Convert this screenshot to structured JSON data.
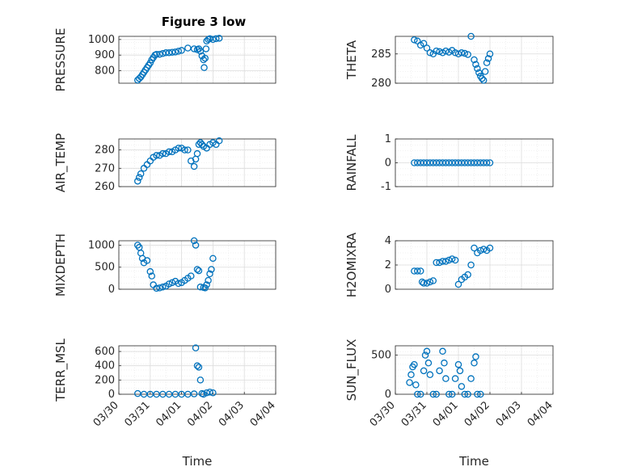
{
  "figure_title": "Figure 3 low",
  "chart_data": [
    {
      "id": "pressure",
      "type": "scatter",
      "ylabel": "PRESSURE",
      "ylim": [
        720,
        1020
      ],
      "yticks": [
        800,
        900,
        1000
      ],
      "xticks": [],
      "xlabel": "",
      "x": [
        0.6,
        0.65,
        0.7,
        0.75,
        0.8,
        0.85,
        0.9,
        0.95,
        1.0,
        1.05,
        1.1,
        1.15,
        1.2,
        1.3,
        1.4,
        1.5,
        1.6,
        1.7,
        1.8,
        1.9,
        2.0,
        2.2,
        2.4,
        2.5,
        2.55,
        2.6,
        2.65,
        2.7,
        2.72,
        2.75,
        2.78,
        2.8,
        2.85,
        2.9,
        3.0,
        3.1,
        3.2
      ],
      "y": [
        740,
        750,
        760,
        775,
        790,
        805,
        820,
        835,
        850,
        870,
        885,
        900,
        905,
        905,
        910,
        915,
        915,
        918,
        920,
        925,
        930,
        945,
        940,
        935,
        940,
        925,
        895,
        870,
        820,
        880,
        940,
        990,
        1000,
        1005,
        1000,
        1005,
        1008
      ]
    },
    {
      "id": "theta",
      "type": "scatter",
      "ylabel": "THETA",
      "ylim": [
        280,
        288
      ],
      "yticks": [
        280,
        285
      ],
      "xticks": [],
      "xlabel": "",
      "x": [
        0.6,
        0.7,
        0.8,
        0.9,
        1.0,
        1.1,
        1.2,
        1.3,
        1.4,
        1.5,
        1.6,
        1.7,
        1.8,
        1.9,
        2.0,
        2.1,
        2.2,
        2.3,
        2.4,
        2.5,
        2.55,
        2.6,
        2.65,
        2.7,
        2.75,
        2.8,
        2.85,
        2.9,
        2.95,
        3.0
      ],
      "y": [
        287.4,
        287.2,
        286.5,
        286.8,
        286.0,
        285.2,
        285.0,
        285.5,
        285.4,
        285.2,
        285.5,
        285.3,
        285.6,
        285.2,
        285.0,
        285.2,
        285.1,
        284.9,
        288.0,
        284.0,
        283.2,
        282.5,
        281.8,
        281.2,
        280.8,
        280.5,
        282.0,
        283.5,
        284.2,
        285.0
      ]
    },
    {
      "id": "air_temp",
      "type": "scatter",
      "ylabel": "AIR_TEMP",
      "ylim": [
        260,
        286
      ],
      "yticks": [
        260,
        270,
        280
      ],
      "xticks": [],
      "xlabel": "",
      "x": [
        0.6,
        0.65,
        0.7,
        0.8,
        0.9,
        1.0,
        1.1,
        1.2,
        1.3,
        1.4,
        1.5,
        1.6,
        1.7,
        1.8,
        1.9,
        2.0,
        2.1,
        2.2,
        2.3,
        2.4,
        2.45,
        2.5,
        2.55,
        2.6,
        2.65,
        2.7,
        2.8,
        2.9,
        3.0,
        3.1,
        3.2
      ],
      "y": [
        263,
        265,
        267,
        270,
        272,
        274,
        276,
        277,
        277,
        278,
        278,
        279,
        279,
        280,
        281,
        281,
        280,
        280,
        274,
        271,
        275,
        278,
        283,
        284,
        283,
        282,
        281,
        283,
        284,
        283,
        285
      ]
    },
    {
      "id": "rainfall",
      "type": "scatter",
      "ylabel": "RAINFALL",
      "ylim": [
        -1,
        1
      ],
      "yticks": [
        -1,
        0,
        1
      ],
      "xticks": [],
      "xlabel": "",
      "x": [
        0.6,
        0.7,
        0.8,
        0.9,
        1.0,
        1.1,
        1.2,
        1.3,
        1.4,
        1.5,
        1.6,
        1.7,
        1.8,
        1.9,
        2.0,
        2.1,
        2.2,
        2.3,
        2.4,
        2.5,
        2.6,
        2.7,
        2.8,
        2.9,
        3.0
      ],
      "y": [
        0,
        0,
        0,
        0,
        0,
        0,
        0,
        0,
        0,
        0,
        0,
        0,
        0,
        0,
        0,
        0,
        0,
        0,
        0,
        0,
        0,
        0,
        0,
        0,
        0
      ]
    },
    {
      "id": "mixdepth",
      "type": "scatter",
      "ylabel": "MIXDEPTH",
      "ylim": [
        0,
        1100
      ],
      "yticks": [
        0,
        500,
        1000
      ],
      "xticks": [],
      "xlabel": "",
      "x": [
        0.6,
        0.65,
        0.7,
        0.75,
        0.8,
        0.9,
        1.0,
        1.05,
        1.1,
        1.2,
        1.3,
        1.4,
        1.5,
        1.6,
        1.7,
        1.8,
        1.9,
        2.0,
        2.1,
        2.2,
        2.3,
        2.4,
        2.45,
        2.5,
        2.55,
        2.6,
        2.7,
        2.75,
        2.8,
        2.85,
        2.9,
        2.95,
        3.0
      ],
      "y": [
        1000,
        950,
        820,
        700,
        600,
        650,
        400,
        300,
        100,
        20,
        30,
        50,
        70,
        120,
        150,
        180,
        130,
        150,
        200,
        250,
        300,
        1100,
        1000,
        450,
        420,
        50,
        40,
        30,
        100,
        200,
        350,
        450,
        700
      ]
    },
    {
      "id": "h2omixra",
      "type": "scatter",
      "ylabel": "H2OMIXRA",
      "ylim": [
        0,
        4
      ],
      "yticks": [
        0,
        2,
        4
      ],
      "xticks": [],
      "xlabel": "",
      "x": [
        0.6,
        0.7,
        0.8,
        0.85,
        0.9,
        1.0,
        1.1,
        1.2,
        1.3,
        1.4,
        1.5,
        1.6,
        1.7,
        1.8,
        1.9,
        2.0,
        2.1,
        2.2,
        2.3,
        2.4,
        2.5,
        2.6,
        2.7,
        2.8,
        2.9,
        3.0
      ],
      "y": [
        1.5,
        1.5,
        1.5,
        0.6,
        0.5,
        0.5,
        0.6,
        0.7,
        2.2,
        2.2,
        2.3,
        2.3,
        2.4,
        2.5,
        2.4,
        0.4,
        0.8,
        1.0,
        1.2,
        2.0,
        3.4,
        3.0,
        3.2,
        3.3,
        3.2,
        3.4
      ]
    },
    {
      "id": "terr_msl",
      "type": "scatter",
      "ylabel": "TERR_MSL",
      "ylim": [
        0,
        680
      ],
      "yticks": [
        0,
        200,
        400,
        600
      ],
      "xticks": [
        "03/30",
        "03/31",
        "04/01",
        "04/02",
        "04/03",
        "04/04"
      ],
      "xlabel": "Time",
      "x": [
        0.6,
        0.8,
        1.0,
        1.2,
        1.4,
        1.6,
        1.8,
        2.0,
        2.2,
        2.4,
        2.45,
        2.5,
        2.55,
        2.6,
        2.65,
        2.7,
        2.8,
        2.9,
        3.0
      ],
      "y": [
        10,
        0,
        0,
        0,
        0,
        0,
        0,
        0,
        0,
        5,
        650,
        400,
        380,
        200,
        10,
        0,
        20,
        30,
        20
      ]
    },
    {
      "id": "sun_flux",
      "type": "scatter",
      "ylabel": "SUN_FLUX",
      "ylim": [
        0,
        620
      ],
      "yticks": [
        0,
        500
      ],
      "xticks": [
        "03/30",
        "03/31",
        "04/01",
        "04/02",
        "04/03",
        "04/04"
      ],
      "xlabel": "Time",
      "x": [
        0.45,
        0.5,
        0.55,
        0.6,
        0.65,
        0.7,
        0.8,
        0.9,
        0.95,
        1.0,
        1.05,
        1.1,
        1.2,
        1.3,
        1.4,
        1.5,
        1.55,
        1.6,
        1.7,
        1.8,
        1.9,
        2.0,
        2.05,
        2.1,
        2.2,
        2.3,
        2.4,
        2.5,
        2.55,
        2.6,
        2.7
      ],
      "y": [
        150,
        250,
        350,
        380,
        120,
        0,
        0,
        300,
        500,
        550,
        400,
        250,
        0,
        0,
        300,
        550,
        400,
        200,
        0,
        0,
        200,
        380,
        300,
        100,
        0,
        0,
        200,
        400,
        480,
        0,
        0
      ]
    }
  ]
}
